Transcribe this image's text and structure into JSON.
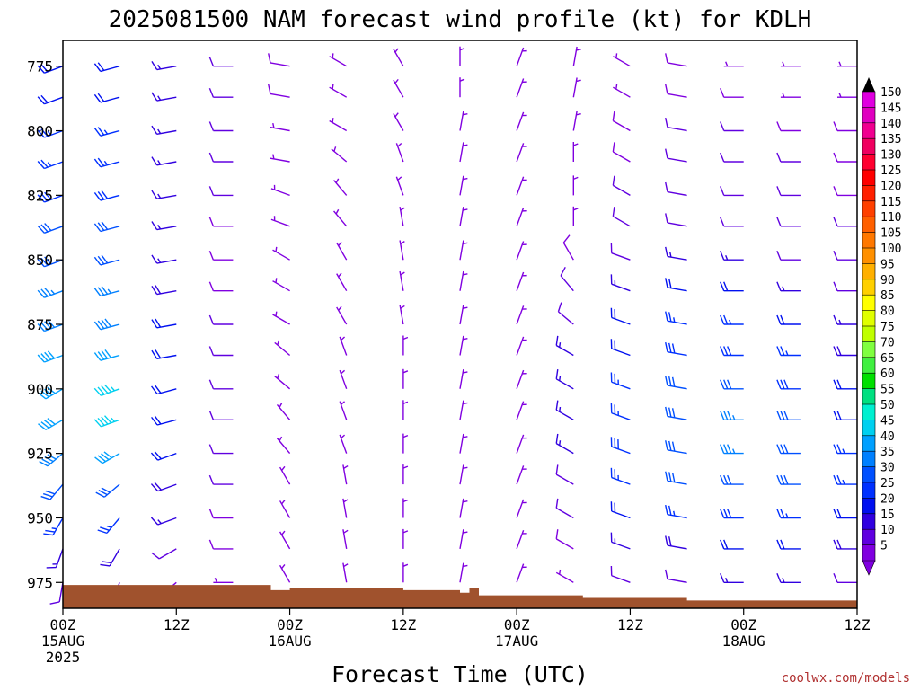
{
  "chart_data": {
    "type": "wind-barb-time-height",
    "title": "2025081500 NAM forecast wind profile (kt) for KDLH",
    "xlabel": "Forecast Time (UTC)",
    "ylabel": "",
    "y_reversed": true,
    "ylim": [
      985,
      765
    ],
    "y_ticks": [
      "775",
      "800",
      "825",
      "850",
      "875",
      "900",
      "925",
      "950",
      "975"
    ],
    "x_hours_range": [
      0,
      84
    ],
    "x_ticks": [
      {
        "hour": 0,
        "label": "00Z",
        "sub1": "15AUG",
        "sub2": "2025"
      },
      {
        "hour": 12,
        "label": "12Z",
        "sub1": "",
        "sub2": ""
      },
      {
        "hour": 24,
        "label": "00Z",
        "sub1": "16AUG",
        "sub2": ""
      },
      {
        "hour": 36,
        "label": "12Z",
        "sub1": "",
        "sub2": ""
      },
      {
        "hour": 48,
        "label": "00Z",
        "sub1": "17AUG",
        "sub2": ""
      },
      {
        "hour": 60,
        "label": "12Z",
        "sub1": "",
        "sub2": ""
      },
      {
        "hour": 72,
        "label": "00Z",
        "sub1": "18AUG",
        "sub2": ""
      },
      {
        "hour": 84,
        "label": "12Z",
        "sub1": "",
        "sub2": ""
      }
    ],
    "pressure_levels": [
      775,
      787,
      800,
      812,
      825,
      837,
      850,
      862,
      875,
      887,
      900,
      912,
      925,
      937,
      950,
      962,
      975
    ],
    "wind_hours": [
      0,
      6,
      12,
      18,
      24,
      30,
      36,
      42,
      48,
      54,
      60,
      66,
      72,
      78,
      84
    ],
    "wind_speed_kt": [
      [
        20,
        20,
        15,
        12,
        8,
        6,
        5,
        5,
        5,
        5,
        6,
        8,
        5,
        5,
        5
      ],
      [
        22,
        22,
        15,
        12,
        8,
        5,
        5,
        5,
        5,
        5,
        5,
        8,
        8,
        5,
        5
      ],
      [
        25,
        25,
        15,
        12,
        6,
        5,
        5,
        5,
        5,
        5,
        8,
        10,
        10,
        8,
        8
      ],
      [
        25,
        25,
        15,
        10,
        6,
        5,
        5,
        5,
        5,
        5,
        8,
        10,
        10,
        10,
        8
      ],
      [
        28,
        28,
        15,
        10,
        5,
        5,
        5,
        5,
        5,
        5,
        10,
        12,
        12,
        10,
        8
      ],
      [
        30,
        30,
        15,
        8,
        5,
        5,
        5,
        5,
        5,
        5,
        10,
        12,
        12,
        12,
        10
      ],
      [
        32,
        32,
        15,
        8,
        5,
        5,
        5,
        5,
        5,
        8,
        12,
        15,
        15,
        12,
        10
      ],
      [
        35,
        35,
        18,
        8,
        5,
        5,
        5,
        5,
        5,
        10,
        15,
        20,
        20,
        15,
        12
      ],
      [
        38,
        38,
        20,
        10,
        5,
        5,
        5,
        5,
        5,
        12,
        20,
        25,
        25,
        20,
        15
      ],
      [
        40,
        42,
        20,
        10,
        5,
        5,
        5,
        5,
        5,
        15,
        22,
        28,
        28,
        25,
        18
      ],
      [
        42,
        45,
        20,
        10,
        5,
        5,
        5,
        5,
        5,
        15,
        25,
        30,
        32,
        28,
        20
      ],
      [
        40,
        45,
        22,
        10,
        5,
        5,
        5,
        5,
        5,
        15,
        25,
        32,
        35,
        30,
        22
      ],
      [
        38,
        40,
        20,
        10,
        5,
        5,
        5,
        5,
        5,
        15,
        28,
        32,
        35,
        32,
        25
      ],
      [
        30,
        32,
        18,
        10,
        5,
        5,
        5,
        5,
        5,
        12,
        25,
        30,
        32,
        30,
        25
      ],
      [
        25,
        25,
        15,
        8,
        5,
        5,
        5,
        5,
        5,
        10,
        20,
        25,
        28,
        25,
        22
      ],
      [
        15,
        18,
        12,
        8,
        5,
        5,
        5,
        5,
        5,
        8,
        15,
        18,
        22,
        20,
        18
      ],
      [
        10,
        10,
        8,
        6,
        5,
        5,
        5,
        5,
        5,
        5,
        10,
        12,
        15,
        15,
        12
      ]
    ],
    "wind_dir_deg": [
      [
        250,
        255,
        260,
        270,
        280,
        300,
        330,
        0,
        20,
        10,
        300,
        280,
        270,
        270,
        270
      ],
      [
        250,
        255,
        260,
        270,
        280,
        300,
        330,
        0,
        20,
        10,
        300,
        280,
        270,
        270,
        270
      ],
      [
        250,
        255,
        260,
        270,
        280,
        300,
        330,
        10,
        20,
        10,
        300,
        280,
        270,
        270,
        270
      ],
      [
        250,
        255,
        260,
        270,
        280,
        310,
        340,
        10,
        20,
        0,
        300,
        280,
        270,
        270,
        270
      ],
      [
        250,
        255,
        260,
        270,
        290,
        320,
        340,
        10,
        20,
        0,
        300,
        280,
        270,
        270,
        270
      ],
      [
        250,
        255,
        260,
        270,
        290,
        320,
        350,
        10,
        20,
        0,
        300,
        280,
        270,
        270,
        270
      ],
      [
        250,
        255,
        260,
        270,
        300,
        330,
        350,
        10,
        20,
        330,
        290,
        280,
        270,
        270,
        270
      ],
      [
        250,
        255,
        260,
        270,
        300,
        330,
        350,
        10,
        20,
        320,
        290,
        280,
        270,
        270,
        270
      ],
      [
        250,
        255,
        260,
        270,
        300,
        330,
        350,
        10,
        20,
        310,
        290,
        280,
        270,
        270,
        270
      ],
      [
        250,
        255,
        260,
        270,
        310,
        340,
        0,
        10,
        20,
        300,
        290,
        280,
        270,
        270,
        270
      ],
      [
        240,
        250,
        255,
        270,
        310,
        340,
        0,
        10,
        20,
        300,
        290,
        280,
        270,
        270,
        270
      ],
      [
        240,
        250,
        255,
        270,
        320,
        340,
        0,
        10,
        20,
        300,
        290,
        280,
        270,
        270,
        270
      ],
      [
        230,
        240,
        250,
        270,
        320,
        340,
        0,
        10,
        20,
        300,
        290,
        280,
        270,
        270,
        270
      ],
      [
        220,
        230,
        250,
        270,
        330,
        350,
        0,
        10,
        20,
        300,
        290,
        280,
        270,
        270,
        270
      ],
      [
        210,
        220,
        250,
        270,
        330,
        350,
        0,
        10,
        20,
        300,
        290,
        280,
        270,
        270,
        270
      ],
      [
        200,
        210,
        240,
        270,
        330,
        350,
        0,
        10,
        20,
        300,
        290,
        280,
        270,
        270,
        270
      ],
      [
        190,
        200,
        230,
        270,
        330,
        350,
        0,
        10,
        20,
        300,
        290,
        280,
        270,
        270,
        270
      ]
    ],
    "terrain_pressure_hpa": [
      {
        "hour": 0,
        "p": 976
      },
      {
        "hour": 12,
        "p": 976
      },
      {
        "hour": 22,
        "p": 978
      },
      {
        "hour": 24,
        "p": 977
      },
      {
        "hour": 36,
        "p": 978
      },
      {
        "hour": 42,
        "p": 979
      },
      {
        "hour": 43,
        "p": 977
      },
      {
        "hour": 44,
        "p": 980
      },
      {
        "hour": 50,
        "p": 980
      },
      {
        "hour": 55,
        "p": 981
      },
      {
        "hour": 60,
        "p": 981
      },
      {
        "hour": 66,
        "p": 982
      },
      {
        "hour": 72,
        "p": 982
      },
      {
        "hour": 84,
        "p": 982
      }
    ],
    "colorbar": {
      "labels": [
        "150",
        "145",
        "140",
        "135",
        "130",
        "125",
        "120",
        "115",
        "110",
        "105",
        "100",
        "95",
        "90",
        "85",
        "80",
        "75",
        "70",
        "65",
        "60",
        "55",
        "50",
        "45",
        "40",
        "35",
        "30",
        "25",
        "20",
        "15",
        "10",
        "5"
      ],
      "colors": [
        "#e000e0",
        "#e000c0",
        "#f00090",
        "#f00060",
        "#ff0030",
        "#ff0000",
        "#ff2000",
        "#ff4000",
        "#ff6000",
        "#ff7800",
        "#ff9000",
        "#ffb000",
        "#ffd000",
        "#ffff00",
        "#e0ff00",
        "#c0ff00",
        "#80ff40",
        "#40f040",
        "#00e000",
        "#00e080",
        "#00f0d0",
        "#00d0f0",
        "#00a0ff",
        "#0080ff",
        "#0050ff",
        "#0030ff",
        "#0010f0",
        "#3000e0",
        "#6000e0",
        "#8000e0"
      ]
    },
    "terrain_color": "#a0522d"
  },
  "credit": "coolwx.com/models"
}
